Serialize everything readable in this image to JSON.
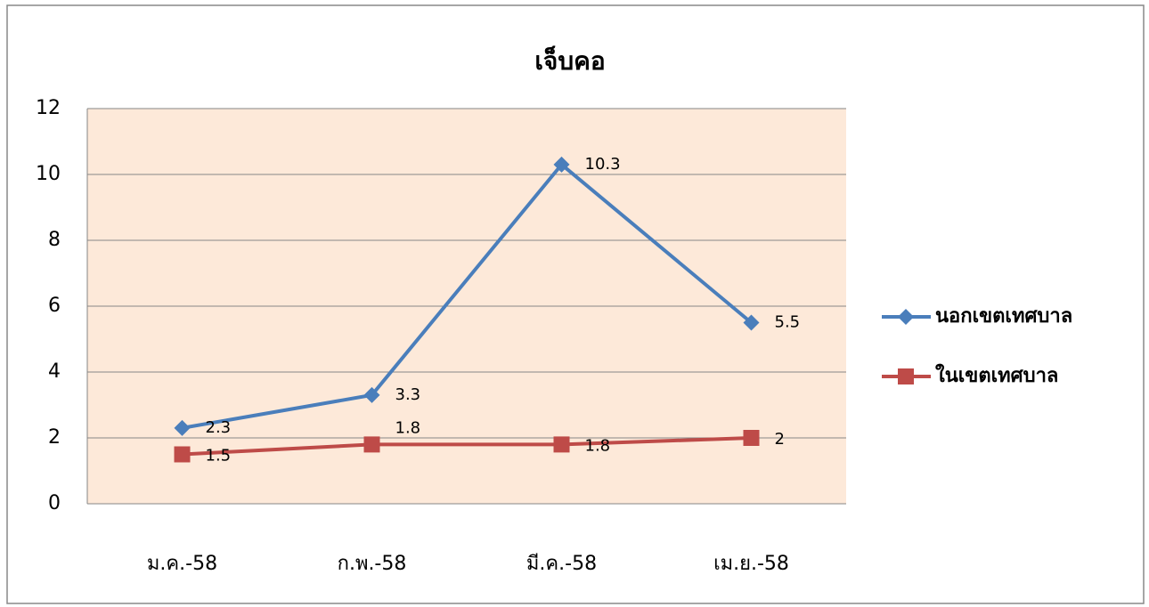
{
  "chart_data": {
    "type": "line",
    "title": "เจ็บคอ",
    "categories": [
      "ม.ค.-58",
      "ก.พ.-58",
      "มี.ค.-58",
      "เม.ย.-58"
    ],
    "series": [
      {
        "name": "นอกเขตเทศบาล",
        "color": "#4a7ebb",
        "marker": "diamond",
        "values": [
          2.3,
          3.3,
          10.3,
          5.5
        ]
      },
      {
        "name": "ในเขตเทศบาล",
        "color": "#be4b48",
        "marker": "square",
        "values": [
          1.5,
          1.8,
          1.8,
          2
        ]
      }
    ],
    "ylim": [
      0,
      12
    ],
    "yticks": [
      0,
      2,
      4,
      6,
      8,
      10,
      12
    ],
    "grid": true,
    "legend": "right"
  }
}
